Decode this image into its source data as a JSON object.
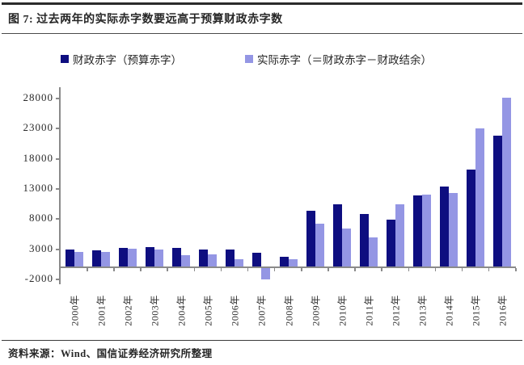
{
  "header": {
    "title": "图 7: 过去两年的实际赤字数要远高于预算财政赤字数"
  },
  "footer": {
    "source": "资料来源：Wind、国信证券经济研究所整理"
  },
  "colors": {
    "bar_budget": "#0e0e80",
    "bar_actual": "#9496e4",
    "axis": "#8a8a8a",
    "text": "#2a2a2a",
    "rule": "#2b2b2b"
  },
  "chart_data": {
    "type": "bar",
    "title": "图 7: 过去两年的实际赤字数要远高于预算财政赤字数",
    "categories": [
      "2000年",
      "2001年",
      "2002年",
      "2003年",
      "2004年",
      "2005年",
      "2006年",
      "2007年",
      "2008年",
      "2009年",
      "2010年",
      "2011年",
      "2012年",
      "2013年",
      "2014年",
      "2015年",
      "2016年"
    ],
    "series": [
      {
        "name": "财政赤字（预算赤字）",
        "color": "#0e0e80",
        "values": [
          2900,
          2800,
          3200,
          3300,
          3200,
          3000,
          2900,
          2400,
          1800,
          9400,
          10400,
          8900,
          7900,
          11900,
          13400,
          16200,
          21800
        ]
      },
      {
        "name": "实际赤字（＝财政赤字－财政结余）",
        "color": "#9496e4",
        "values": [
          2500,
          2500,
          3100,
          2900,
          2000,
          2200,
          1400,
          -1900,
          1400,
          7200,
          6400,
          5000,
          10400,
          12000,
          12300,
          23100,
          28200
        ]
      }
    ],
    "ylim": [
      -2000,
      28000
    ],
    "yticks": [
      -2000,
      3000,
      8000,
      13000,
      18000,
      23000,
      28000
    ],
    "xlabel": "",
    "ylabel": "",
    "legend_position": "top",
    "grid": false,
    "source_note": "资料来源：Wind、国信证券经济研究所整理"
  }
}
